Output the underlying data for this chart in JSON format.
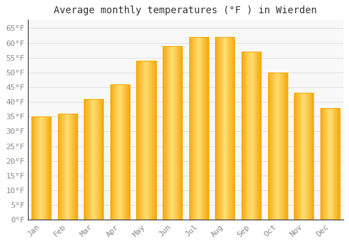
{
  "title": "Average monthly temperatures (°F ) in Wierden",
  "months": [
    "Jan",
    "Feb",
    "Mar",
    "Apr",
    "May",
    "Jun",
    "Jul",
    "Aug",
    "Sep",
    "Oct",
    "Nov",
    "Dec"
  ],
  "values": [
    35,
    36,
    41,
    46,
    54,
    59,
    62,
    62,
    57,
    50,
    43,
    38
  ],
  "bar_color_center": "#FFD966",
  "bar_color_edge": "#F5A800",
  "background_color": "#FFFFFF",
  "plot_bg_color": "#F8F8F8",
  "grid_color": "#DDDDDD",
  "yticks": [
    0,
    5,
    10,
    15,
    20,
    25,
    30,
    35,
    40,
    45,
    50,
    55,
    60,
    65
  ],
  "ytick_labels": [
    "0°F",
    "5°F",
    "10°F",
    "15°F",
    "20°F",
    "25°F",
    "30°F",
    "35°F",
    "40°F",
    "45°F",
    "50°F",
    "55°F",
    "60°F",
    "65°F"
  ],
  "ylim": [
    0,
    68
  ],
  "title_fontsize": 10,
  "tick_fontsize": 8,
  "tick_color": "#888888",
  "spine_color": "#333333",
  "bar_width": 0.75,
  "n_gradient_steps": 30
}
